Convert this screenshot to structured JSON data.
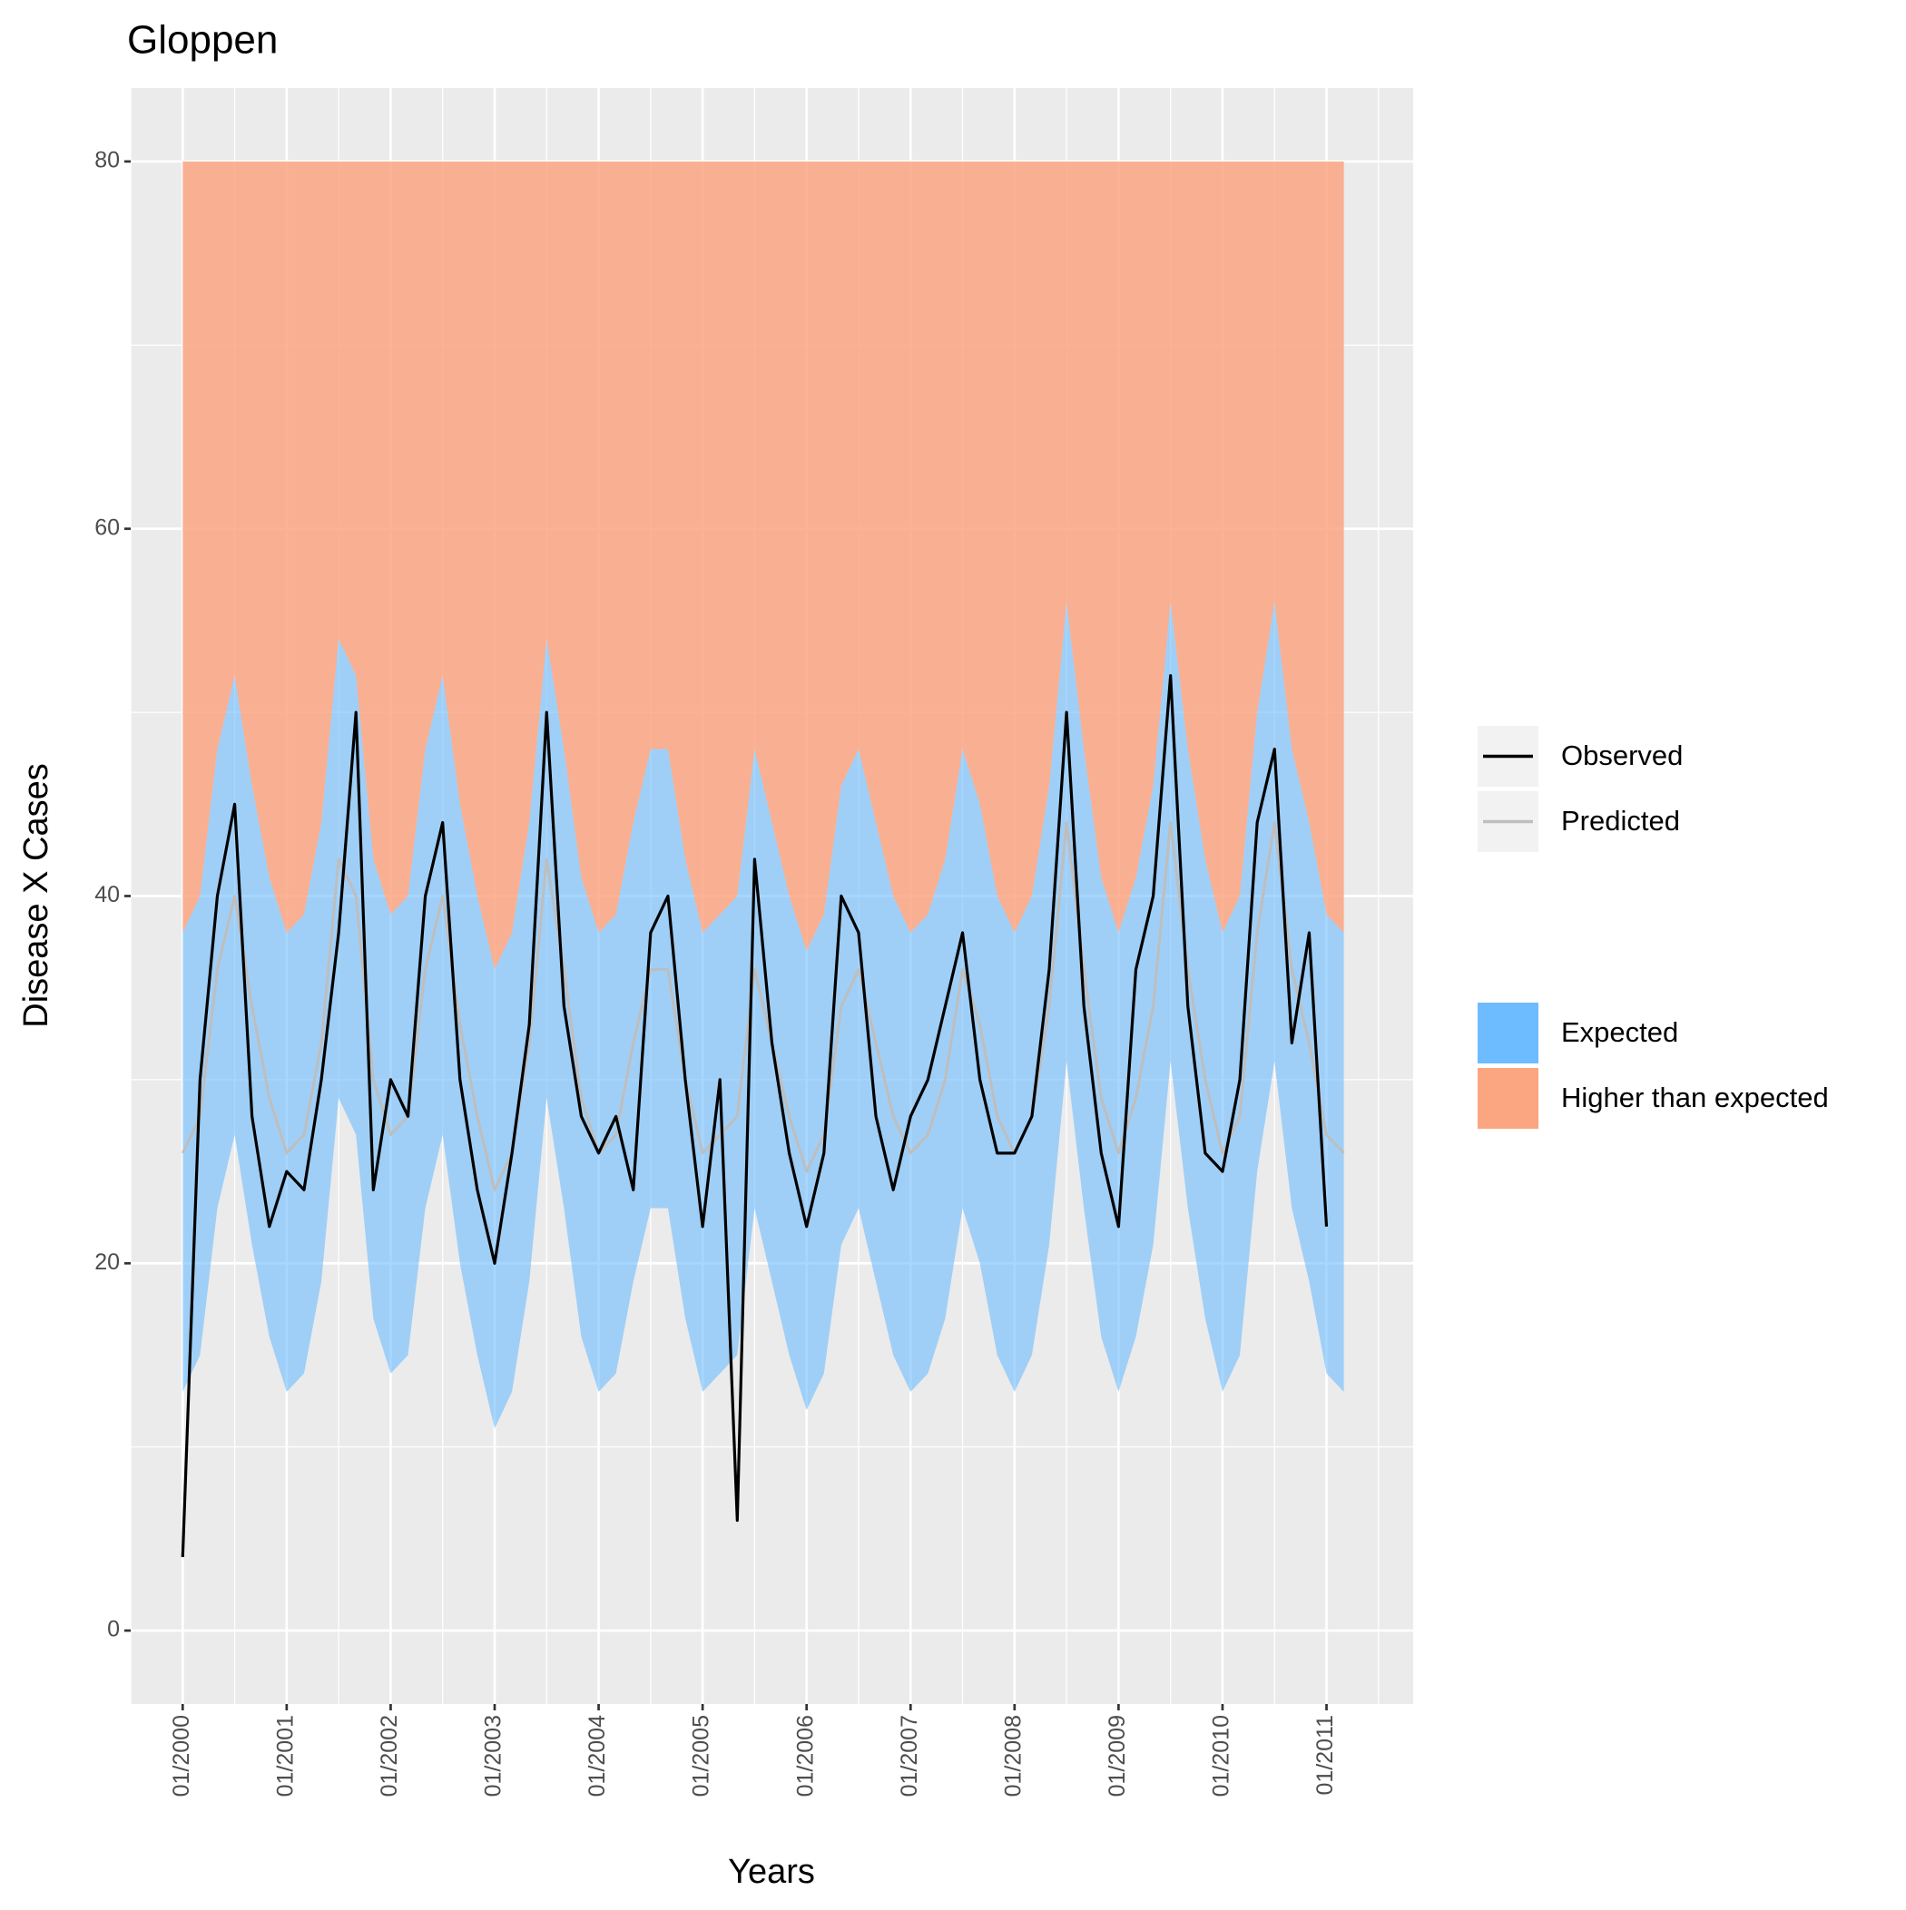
{
  "chart_data": {
    "type": "line",
    "title": "Gloppen",
    "x_label": "Years",
    "y_label": "Disease X Cases",
    "x": [
      "2000-01",
      "2000-03",
      "2000-05",
      "2000-07",
      "2000-09",
      "2000-11",
      "2001-01",
      "2001-03",
      "2001-05",
      "2001-07",
      "2001-09",
      "2001-11",
      "2002-01",
      "2002-03",
      "2002-05",
      "2002-07",
      "2002-09",
      "2002-11",
      "2003-01",
      "2003-03",
      "2003-05",
      "2003-07",
      "2003-09",
      "2003-11",
      "2004-01",
      "2004-03",
      "2004-05",
      "2004-07",
      "2004-09",
      "2004-11",
      "2005-01",
      "2005-03",
      "2005-05",
      "2005-07",
      "2005-09",
      "2005-11",
      "2006-01",
      "2006-03",
      "2006-05",
      "2006-07",
      "2006-09",
      "2006-11",
      "2007-01",
      "2007-03",
      "2007-05",
      "2007-07",
      "2007-09",
      "2007-11",
      "2008-01",
      "2008-03",
      "2008-05",
      "2008-07",
      "2008-09",
      "2008-11",
      "2009-01",
      "2009-03",
      "2009-05",
      "2009-07",
      "2009-09",
      "2009-11",
      "2010-01",
      "2010-03",
      "2010-05",
      "2010-07",
      "2010-09",
      "2010-11",
      "2011-01",
      "2011-03"
    ],
    "series": [
      {
        "name": "Observed",
        "color": "#000000",
        "values": [
          4,
          30,
          40,
          45,
          28,
          22,
          25,
          24,
          30,
          38,
          50,
          24,
          30,
          28,
          40,
          44,
          30,
          24,
          20,
          26,
          33,
          50,
          34,
          28,
          26,
          28,
          24,
          38,
          40,
          30,
          22,
          30,
          6,
          42,
          32,
          26,
          22,
          26,
          40,
          38,
          28,
          24,
          28,
          30,
          34,
          38,
          30,
          26,
          26,
          28,
          36,
          50,
          34,
          26,
          22,
          36,
          40,
          52,
          34,
          26,
          25,
          30,
          44,
          48,
          32,
          38,
          22,
          null
        ]
      },
      {
        "name": "Predicted",
        "color": "#bebebe",
        "values": [
          26,
          28,
          36,
          40,
          34,
          29,
          26,
          27,
          32,
          42,
          40,
          30,
          27,
          28,
          36,
          40,
          33,
          28,
          24,
          26,
          32,
          42,
          36,
          29,
          26,
          27,
          32,
          36,
          36,
          30,
          26,
          27,
          28,
          36,
          32,
          28,
          25,
          27,
          34,
          36,
          32,
          28,
          26,
          27,
          30,
          36,
          33,
          28,
          26,
          28,
          34,
          44,
          36,
          29,
          26,
          29,
          34,
          44,
          36,
          30,
          26,
          28,
          38,
          44,
          36,
          32,
          27,
          26
        ]
      }
    ],
    "bands": [
      {
        "name": "Expected",
        "color": "#6cbcff",
        "lower": [
          13,
          15,
          23,
          27,
          21,
          16,
          13,
          14,
          19,
          29,
          27,
          17,
          14,
          15,
          23,
          27,
          20,
          15,
          11,
          13,
          19,
          29,
          23,
          16,
          13,
          14,
          19,
          23,
          23,
          17,
          13,
          14,
          15,
          23,
          19,
          15,
          12,
          14,
          21,
          23,
          19,
          15,
          13,
          14,
          17,
          23,
          20,
          15,
          13,
          15,
          21,
          31,
          23,
          16,
          13,
          16,
          21,
          31,
          23,
          17,
          13,
          15,
          25,
          31,
          23,
          19,
          14,
          13
        ],
        "upper": [
          38,
          40,
          48,
          52,
          46,
          41,
          38,
          39,
          44,
          54,
          52,
          42,
          39,
          40,
          48,
          52,
          45,
          40,
          36,
          38,
          44,
          54,
          48,
          41,
          38,
          39,
          44,
          48,
          48,
          42,
          38,
          39,
          40,
          48,
          44,
          40,
          37,
          39,
          46,
          48,
          44,
          40,
          38,
          39,
          42,
          48,
          45,
          40,
          38,
          40,
          46,
          56,
          48,
          41,
          38,
          41,
          46,
          56,
          48,
          42,
          38,
          40,
          50,
          56,
          48,
          44,
          39,
          38
        ]
      },
      {
        "name": "Higher than expected",
        "color": "#fca581",
        "upper": 80
      }
    ],
    "xlim": [
      "1999-07",
      "2011-11"
    ],
    "xticks": [
      {
        "value": "2000-01",
        "label": "01/2000"
      },
      {
        "value": "2001-01",
        "label": "01/2001"
      },
      {
        "value": "2002-01",
        "label": "01/2002"
      },
      {
        "value": "2003-01",
        "label": "01/2003"
      },
      {
        "value": "2004-01",
        "label": "01/2004"
      },
      {
        "value": "2005-01",
        "label": "01/2005"
      },
      {
        "value": "2006-01",
        "label": "01/2006"
      },
      {
        "value": "2007-01",
        "label": "01/2007"
      },
      {
        "value": "2008-01",
        "label": "01/2008"
      },
      {
        "value": "2009-01",
        "label": "01/2009"
      },
      {
        "value": "2010-01",
        "label": "01/2010"
      },
      {
        "value": "2011-01",
        "label": "01/2011"
      }
    ],
    "ylim": [
      -4,
      84
    ],
    "yticks": [
      0,
      20,
      40,
      60,
      80
    ],
    "grid": true
  }
}
